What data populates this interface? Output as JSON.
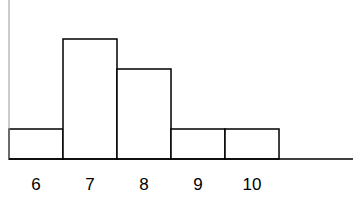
{
  "chart_data": {
    "type": "histogram",
    "bins": [
      5.5,
      6.5,
      7.5,
      8.5,
      9.5,
      10.5
    ],
    "values": [
      1,
      4,
      3,
      1,
      1
    ],
    "color": "#ffffff",
    "xlim": [
      5.5,
      11.87
    ],
    "xticks": [
      6,
      7,
      8,
      9,
      10
    ],
    "ylim": [
      0,
      5.3
    ],
    "tick_labels": "x",
    "grid": false
  }
}
